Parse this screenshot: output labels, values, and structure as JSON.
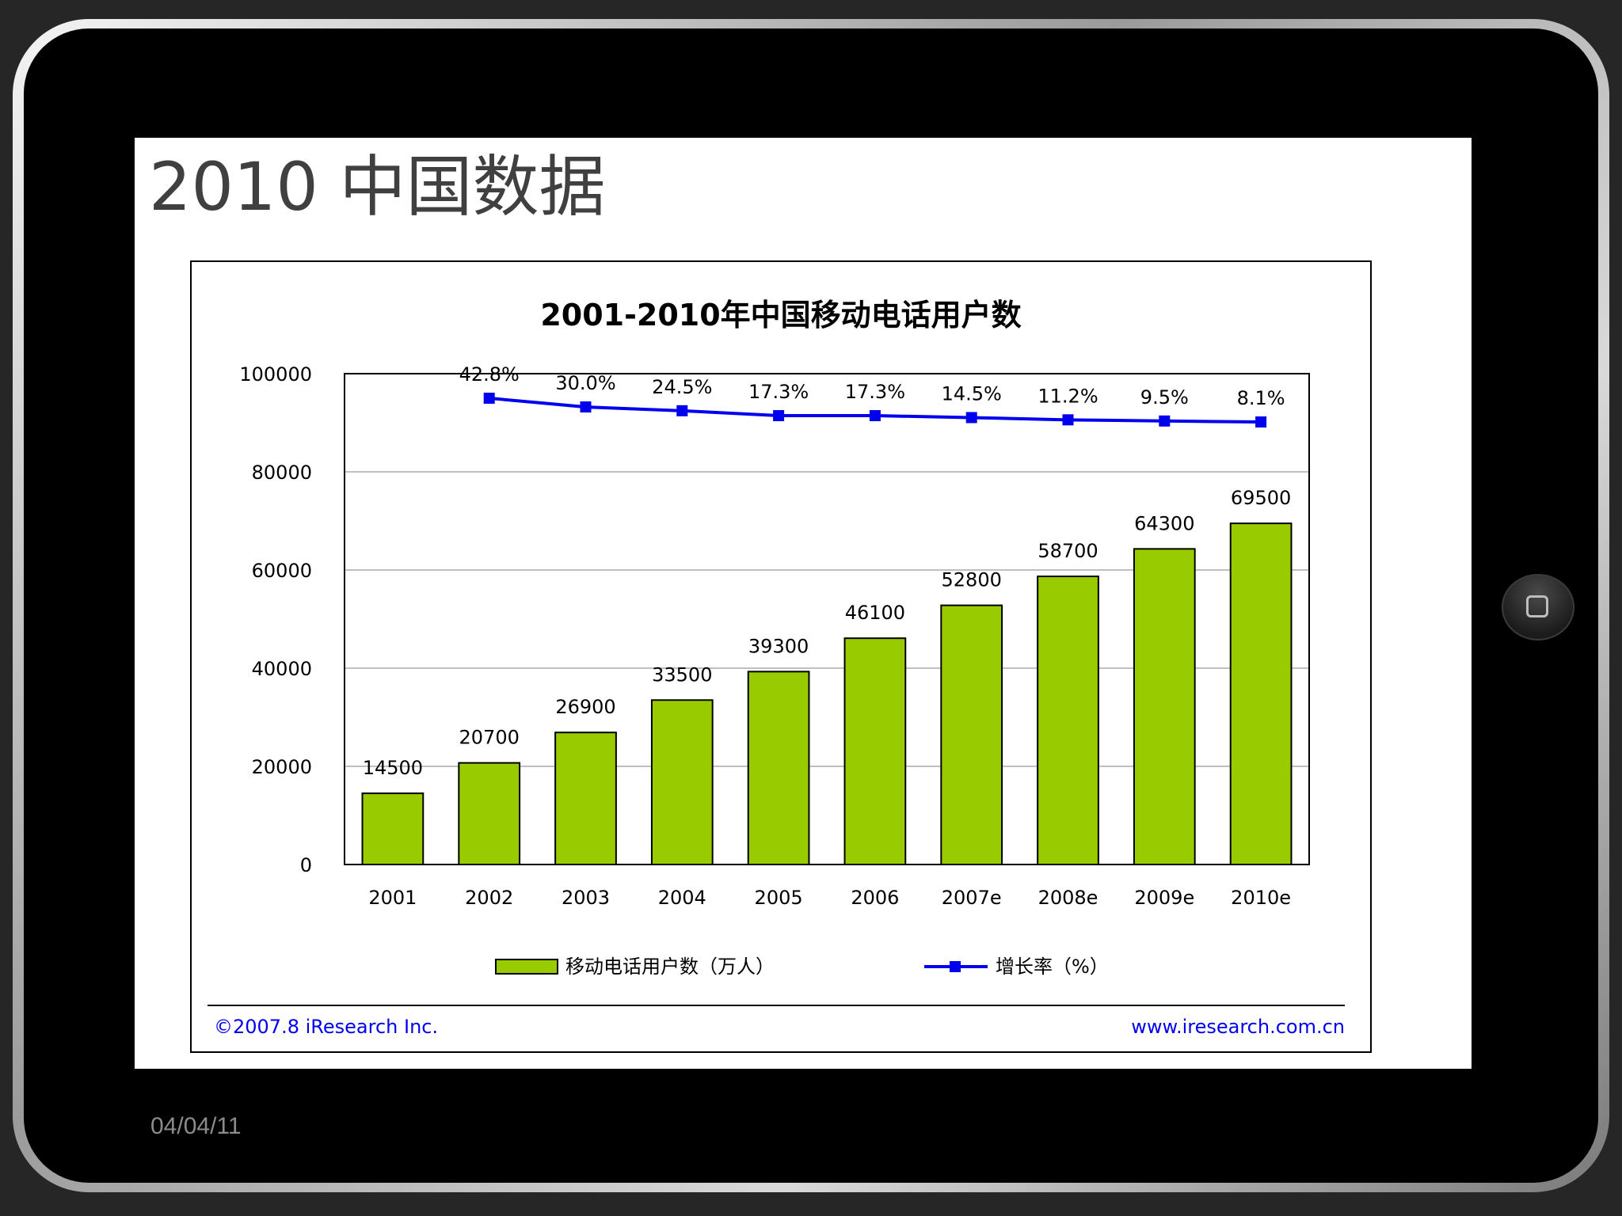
{
  "slide": {
    "title": "2010 中国数据",
    "date": "04/04/11"
  },
  "chart_data": {
    "type": "bar",
    "title": "2001-2010年中国移动电话用户数",
    "categories": [
      "2001",
      "2002",
      "2003",
      "2004",
      "2005",
      "2006",
      "2007e",
      "2008e",
      "2009e",
      "2010e"
    ],
    "series": [
      {
        "name": "移动电话用户数（万人）",
        "type": "bar",
        "color": "#99cc00",
        "values": [
          14500,
          20700,
          26900,
          33500,
          39300,
          46100,
          52800,
          58700,
          64300,
          69500
        ],
        "labels": [
          "14500",
          "20700",
          "26900",
          "33500",
          "39300",
          "46100",
          "52800",
          "58700",
          "64300",
          "69500"
        ]
      },
      {
        "name": "增长率（%）",
        "type": "line",
        "color": "#0000ee",
        "values": [
          null,
          42.8,
          30.0,
          24.5,
          17.3,
          17.3,
          14.5,
          11.2,
          9.5,
          8.1
        ],
        "labels": [
          "",
          "42.8%",
          "30.0%",
          "24.5%",
          "17.3%",
          "17.3%",
          "14.5%",
          "11.2%",
          "9.5%",
          "8.1%"
        ]
      }
    ],
    "yticks": [
      "0",
      "20000",
      "40000",
      "60000",
      "80000",
      "100000"
    ],
    "ylim": [
      0,
      100000
    ],
    "grid": true,
    "legend_position": "bottom",
    "source_left": "©2007.8 iResearch Inc.",
    "source_right": "www.iresearch.com.cn"
  }
}
